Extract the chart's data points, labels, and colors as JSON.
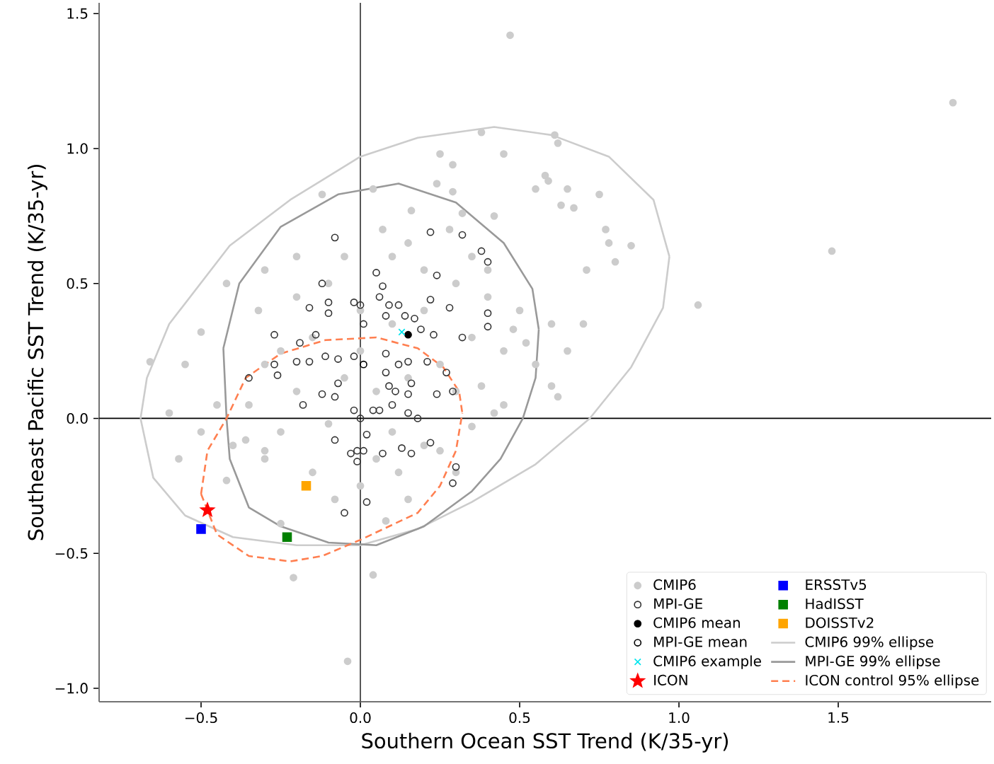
{
  "chart_data": {
    "type": "scatter",
    "xlabel": "Southern Ocean SST Trend (K/35-yr)",
    "ylabel": "Southeast Pacific SST Trend (K/35-yr)",
    "xlim": [
      -0.82,
      1.98
    ],
    "ylim": [
      -1.05,
      1.54
    ],
    "xticks": [
      {
        "value": -0.5,
        "label": "−0.5"
      },
      {
        "value": 0,
        "label": "0.0"
      },
      {
        "value": 0.5,
        "label": "0.5"
      },
      {
        "value": 1.0,
        "label": "1.0"
      },
      {
        "value": 1.5,
        "label": "1.5"
      }
    ],
    "yticks": [
      {
        "value": -1.0,
        "label": "−1.0"
      },
      {
        "value": -0.5,
        "label": "−0.5"
      },
      {
        "value": 0,
        "label": "0.0"
      },
      {
        "value": 0.5,
        "label": "0.5"
      },
      {
        "value": 1.0,
        "label": "1.0"
      },
      {
        "value": 1.5,
        "label": "1.5"
      }
    ],
    "legend": "bottom right",
    "ref_lines": [
      {
        "axis": "x",
        "value": 0,
        "color": "#444444"
      },
      {
        "axis": "y",
        "value": 0,
        "color": "#000000"
      }
    ],
    "series": [
      {
        "name": "CMIP6",
        "marker": "circle",
        "color": "#cccccc",
        "x": [
          0.47,
          1.86,
          1.48,
          1.06,
          -0.04,
          -0.21,
          0.04,
          -0.66,
          -0.6,
          -0.55,
          0.38,
          0.61,
          0.62,
          0.45,
          0.58,
          0.59,
          0.65,
          0.67,
          0.63,
          0.75,
          0.55,
          0.25,
          0.29,
          0.04,
          -0.12,
          0.24,
          0.29,
          0.16,
          0.32,
          0.42,
          0.78,
          0.85,
          0.8,
          0.71,
          0.77,
          -0.3,
          -0.42,
          -0.5,
          -0.32,
          0.1,
          0.2,
          0.3,
          0.4,
          0.5,
          0.6,
          -0.1,
          -0.2,
          0.0,
          0.1,
          0.2,
          0.35,
          0.45,
          -0.15,
          -0.25,
          -0.3,
          0.0,
          0.25,
          0.55,
          0.65,
          0.7,
          0.15,
          0.05,
          -0.05,
          -0.2,
          -0.35,
          0.3,
          0.45,
          0.6,
          0.62,
          0.1,
          -0.1,
          0.2,
          -0.25,
          0.35,
          0.42,
          -0.3,
          -0.4,
          -0.5,
          -0.45,
          0.05,
          0.12,
          0.25,
          0.3,
          0.15,
          -0.15,
          -0.3,
          -0.36,
          -0.42,
          -0.57,
          -0.08,
          -0.25,
          0.0,
          0.08,
          0.38,
          0.48,
          0.52,
          0.4,
          0.35,
          0.15,
          -0.05,
          0.07,
          -0.2,
          0.28
        ],
        "values": [
          1.42,
          1.17,
          0.62,
          0.42,
          -0.9,
          -0.59,
          -0.58,
          0.21,
          0.02,
          0.2,
          1.06,
          1.05,
          1.02,
          0.98,
          0.9,
          0.88,
          0.85,
          0.78,
          0.79,
          0.83,
          0.85,
          0.98,
          0.94,
          0.85,
          0.83,
          0.87,
          0.84,
          0.77,
          0.76,
          0.75,
          0.65,
          0.64,
          0.58,
          0.55,
          0.7,
          0.55,
          0.5,
          0.32,
          0.4,
          0.6,
          0.55,
          0.5,
          0.45,
          0.4,
          0.35,
          0.5,
          0.45,
          0.4,
          0.35,
          0.4,
          0.3,
          0.25,
          0.3,
          0.25,
          0.2,
          0.25,
          0.2,
          0.2,
          0.25,
          0.35,
          0.15,
          0.1,
          0.15,
          0.1,
          0.05,
          0.1,
          0.05,
          0.12,
          0.08,
          -0.05,
          -0.02,
          -0.1,
          -0.05,
          -0.03,
          0.02,
          -0.12,
          -0.1,
          -0.05,
          0.05,
          -0.15,
          -0.2,
          -0.12,
          -0.2,
          -0.3,
          -0.2,
          -0.15,
          -0.08,
          -0.23,
          -0.15,
          -0.3,
          -0.39,
          -0.25,
          -0.38,
          0.12,
          0.33,
          0.28,
          0.55,
          0.6,
          0.65,
          0.6,
          0.7,
          0.6,
          0.7
        ]
      },
      {
        "name": "MPI-GE",
        "marker": "circle",
        "color": "#333333",
        "x": [
          -0.08,
          0.22,
          0.32,
          0.38,
          0.4,
          0.24,
          0.05,
          0.07,
          -0.12,
          -0.1,
          -0.02,
          -0.16,
          -0.1,
          0.0,
          0.06,
          0.09,
          0.12,
          0.22,
          0.28,
          0.4,
          0.4,
          0.08,
          0.14,
          0.17,
          -0.27,
          -0.14,
          -0.19,
          0.19,
          0.23,
          0.32,
          0.01,
          -0.35,
          -0.26,
          -0.18,
          -0.12,
          -0.08,
          -0.07,
          -0.02,
          0.0,
          0.04,
          0.06,
          0.1,
          0.15,
          0.18,
          -0.08,
          0.02,
          -0.03,
          -0.01,
          0.01,
          -0.01,
          0.07,
          0.13,
          0.16,
          0.22,
          0.3,
          0.29,
          0.02,
          -0.05,
          0.24,
          0.27,
          0.29,
          0.16,
          0.09,
          0.11,
          0.15,
          0.08,
          -0.27,
          -0.2,
          -0.16,
          -0.11,
          -0.07,
          -0.02,
          0.08,
          0.12,
          0.15,
          0.21
        ],
        "values": [
          0.67,
          0.69,
          0.68,
          0.62,
          0.58,
          0.53,
          0.54,
          0.49,
          0.5,
          0.43,
          0.43,
          0.41,
          0.39,
          0.42,
          0.45,
          0.42,
          0.42,
          0.44,
          0.41,
          0.39,
          0.34,
          0.38,
          0.38,
          0.37,
          0.31,
          0.31,
          0.28,
          0.33,
          0.31,
          0.3,
          0.35,
          0.15,
          0.16,
          0.05,
          0.09,
          0.08,
          0.13,
          0.03,
          0.0,
          0.03,
          0.03,
          0.05,
          0.02,
          0.0,
          -0.08,
          -0.06,
          -0.13,
          -0.12,
          -0.12,
          -0.16,
          -0.13,
          -0.11,
          -0.13,
          -0.09,
          -0.18,
          -0.24,
          -0.31,
          -0.35,
          0.09,
          0.17,
          0.1,
          0.13,
          0.12,
          0.1,
          0.09,
          0.17,
          0.2,
          0.21,
          0.21,
          0.23,
          0.22,
          0.23,
          0.24,
          0.2,
          0.21,
          0.21
        ]
      },
      {
        "name": "CMIP6 mean",
        "marker": "circle",
        "color": "#000000",
        "x": [
          0.15
        ],
        "values": [
          0.31
        ]
      },
      {
        "name": "MPI-GE mean",
        "marker": "circle",
        "color": "#000000",
        "x": [
          0.01
        ],
        "values": [
          0.2
        ]
      },
      {
        "name": "CMIP6 example",
        "marker": "cross",
        "color": "#00e5ee",
        "x": [
          0.13
        ],
        "values": [
          0.32
        ]
      },
      {
        "name": "ICON",
        "marker": "star",
        "color": "#ff0000",
        "x": [
          -0.48
        ],
        "values": [
          -0.34
        ]
      },
      {
        "name": "ERSSTv5",
        "marker": "square",
        "color": "#0000ff",
        "x": [
          -0.5
        ],
        "values": [
          -0.41
        ]
      },
      {
        "name": "HadISST",
        "marker": "square",
        "color": "#008000",
        "x": [
          -0.23
        ],
        "values": [
          -0.44
        ]
      },
      {
        "name": "DOISSTv2",
        "marker": "square",
        "color": "#ffa500",
        "x": [
          -0.17
        ],
        "values": [
          -0.25
        ]
      },
      {
        "name": "CMIP6 99% ellipse",
        "type": "line",
        "line_style": "solid",
        "color": "#cccccc",
        "x": [
          -0.69,
          -0.67,
          -0.6,
          -0.41,
          -0.22,
          0.0,
          0.18,
          0.42,
          0.6,
          0.78,
          0.92,
          0.97,
          null,
          -0.69,
          -0.65,
          -0.55,
          -0.4,
          -0.2,
          0.0,
          0.18,
          0.35,
          0.55,
          0.72,
          0.85,
          0.95,
          0.97
        ],
        "values": [
          0.0,
          0.15,
          0.35,
          0.64,
          0.81,
          0.97,
          1.04,
          1.08,
          1.05,
          0.97,
          0.81,
          0.6,
          null,
          0.0,
          -0.22,
          -0.36,
          -0.44,
          -0.47,
          -0.47,
          -0.41,
          -0.31,
          -0.17,
          0.0,
          0.19,
          0.41,
          0.6
        ]
      },
      {
        "name": "MPI-GE 99% ellipse",
        "type": "line",
        "line_style": "solid",
        "color": "#999999",
        "x": [
          -0.43,
          -0.38,
          -0.25,
          -0.07,
          0.12,
          0.3,
          0.45,
          0.54,
          0.56,
          null,
          -0.43,
          -0.42,
          -0.41,
          -0.35,
          -0.25,
          -0.1,
          0.05,
          0.2,
          0.35,
          0.44,
          0.51,
          0.55,
          0.56
        ],
        "values": [
          0.26,
          0.5,
          0.71,
          0.83,
          0.87,
          0.8,
          0.65,
          0.48,
          0.33,
          null,
          0.26,
          0.0,
          -0.15,
          -0.33,
          -0.4,
          -0.46,
          -0.47,
          -0.4,
          -0.27,
          -0.15,
          0.0,
          0.15,
          0.33
        ]
      },
      {
        "name": "ICON control 95% ellipse",
        "type": "line",
        "line_style": "dashed",
        "color": "#ff7f50",
        "x": [
          -0.5,
          -0.48,
          -0.42,
          -0.36,
          -0.25,
          -0.11,
          0.05,
          0.18,
          0.26,
          0.31,
          0.32,
          null,
          -0.5,
          -0.45,
          -0.35,
          -0.22,
          -0.12,
          0.0,
          0.18,
          0.25,
          0.3,
          0.32
        ],
        "values": [
          -0.28,
          -0.12,
          0.0,
          0.15,
          0.24,
          0.29,
          0.3,
          0.26,
          0.19,
          0.1,
          0.02,
          null,
          -0.28,
          -0.43,
          -0.51,
          -0.53,
          -0.51,
          -0.45,
          -0.35,
          -0.25,
          -0.12,
          0.02
        ]
      }
    ]
  }
}
